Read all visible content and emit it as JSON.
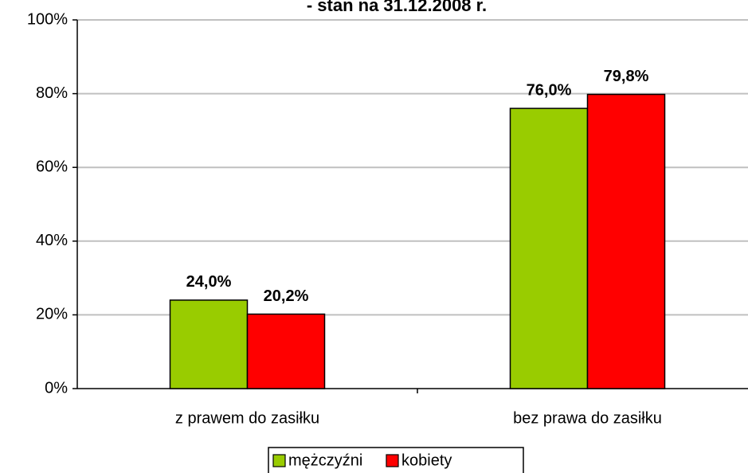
{
  "chart_data": {
    "type": "bar",
    "title": "- stan na 31.12.2008 r.",
    "categories": [
      "z prawem do zasiłku",
      "bez prawa do zasiłku"
    ],
    "series": [
      {
        "name": "mężczyźni",
        "color": "#99cc00",
        "values": [
          24.0,
          76.0
        ],
        "value_labels": [
          "24,0%",
          "76,0%"
        ]
      },
      {
        "name": "kobiety",
        "color": "#ff0000",
        "values": [
          20.2,
          79.8
        ],
        "value_labels": [
          "20,2%",
          "79,8%"
        ]
      }
    ],
    "ylim": [
      0,
      100
    ],
    "yticks": [
      {
        "value": 0,
        "label": "0%"
      },
      {
        "value": 20,
        "label": "20%"
      },
      {
        "value": 40,
        "label": "40%"
      },
      {
        "value": 60,
        "label": "60%"
      },
      {
        "value": 80,
        "label": "80%"
      },
      {
        "value": 100,
        "label": "100%"
      }
    ],
    "grid": true,
    "legend": "bottom"
  }
}
